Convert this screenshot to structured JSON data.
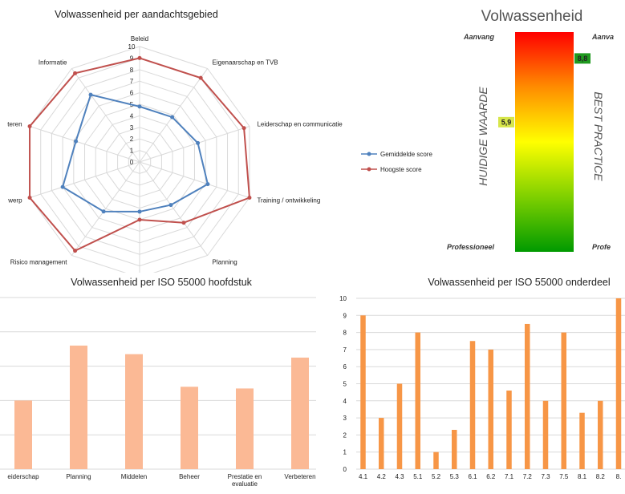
{
  "colors": {
    "avg": "#4f81bd",
    "max": "#c0504d",
    "bar_chapter": "#fbb995",
    "bar_part": "#f79646",
    "grid": "#d9d9d9"
  },
  "chart_data": [
    {
      "type": "radar",
      "title": "Volwassenheid per aandachtsgebied",
      "categories": [
        "Beleid",
        "Eigenaarschap en TVB",
        "Leiderschap en communicatie",
        "Training / ontwikkeling",
        "Planning",
        "",
        "Risico management",
        "werp",
        "teren",
        "Informatie"
      ],
      "rlim": [
        0,
        10
      ],
      "ticks": [
        "0",
        "1",
        "2",
        "3",
        "4",
        "5",
        "6",
        "7",
        "8",
        "9",
        "10"
      ],
      "series": [
        {
          "name": "Gemiddelde score",
          "values": [
            4.8,
            4.8,
            5.3,
            6.2,
            4.6,
            4.3,
            5.3,
            7.0,
            5.8,
            7.2
          ]
        },
        {
          "name": "Hoogste score",
          "values": [
            9.0,
            9.0,
            9.5,
            10.0,
            6.5,
            5.0,
            9.5,
            10.0,
            10.0,
            9.5
          ]
        }
      ],
      "legend": "right"
    },
    {
      "type": "gauge",
      "title": "Volwassenheid",
      "top_left": "Aanvang",
      "top_right": "Aanva",
      "bottom_left": "Professioneel",
      "bottom_right": "Profe",
      "left_label": "HUIDIGE WAARDE",
      "right_label": "BEST PRACTICE",
      "current_label": "5,9",
      "current": 5.9,
      "best_label": "8,8",
      "best": 8.8,
      "scale": [
        10,
        0
      ]
    },
    {
      "type": "bar",
      "title": "Volwassenheid per ISO 55000 hoofdstuk",
      "categories": [
        [
          "eiderschap"
        ],
        [
          "Planning"
        ],
        [
          "Middelen"
        ],
        [
          "Beheer"
        ],
        [
          "Prestatie en",
          "evaluatie"
        ],
        [
          "Verbeteren"
        ]
      ],
      "values": [
        4.0,
        7.2,
        6.7,
        4.8,
        4.7,
        6.5
      ],
      "ylim": [
        0,
        10
      ]
    },
    {
      "type": "bar",
      "title": "Volwassenheid per ISO 55000 onderdeel",
      "categories": [
        "4.1",
        "4.2",
        "4.3",
        "5.1",
        "5.2",
        "5.3",
        "6.1",
        "6.2",
        "7.1",
        "7.2",
        "7.3",
        "7.5",
        "8.1",
        "8.2",
        "8."
      ],
      "values": [
        9.0,
        3.0,
        5.0,
        8.0,
        1.0,
        2.3,
        7.5,
        7.0,
        4.6,
        8.5,
        4.0,
        8.0,
        3.3,
        4.0,
        10.0
      ],
      "ylim": [
        0,
        10
      ],
      "yticks": [
        "0",
        "1",
        "2",
        "3",
        "4",
        "5",
        "6",
        "7",
        "8",
        "9",
        "10"
      ]
    }
  ]
}
